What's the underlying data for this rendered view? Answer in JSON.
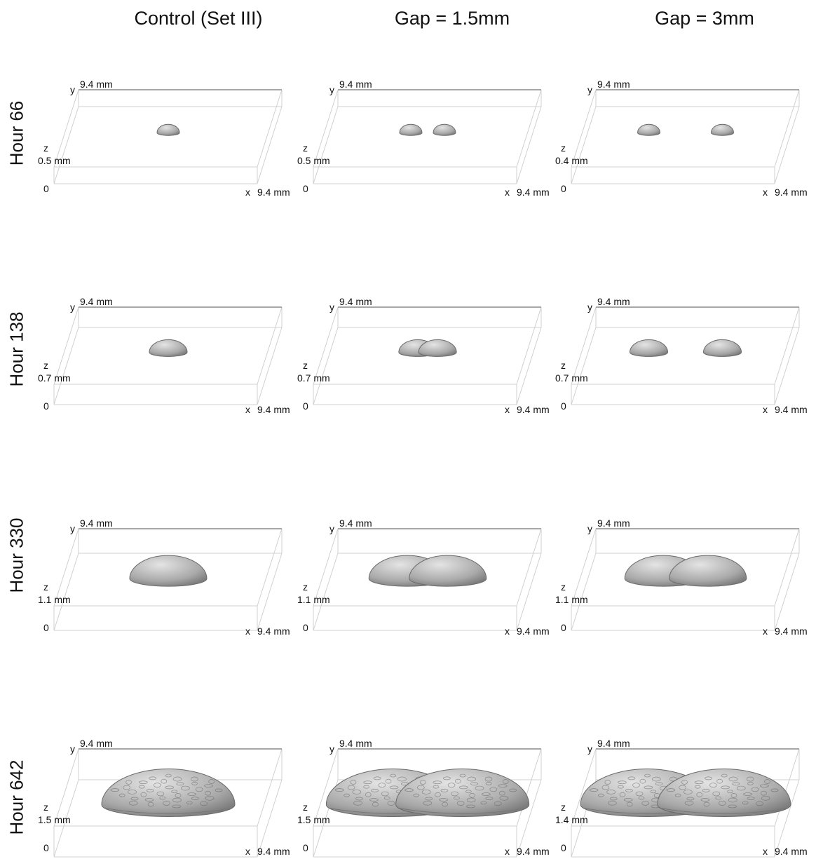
{
  "columns": [
    "Control (Set III)",
    "Gap = 1.5mm",
    "Gap = 3mm"
  ],
  "rows": [
    {
      "label": "Hour 66",
      "panels": [
        {
          "y_label": "y",
          "y_extent": "9.4 mm",
          "z_label": "z",
          "z_extent": "0.5 mm",
          "origin": "0",
          "x_label": "x",
          "x_extent": "9.4 mm",
          "colonies": 1,
          "merged": false
        },
        {
          "y_label": "y",
          "y_extent": "9.4 mm",
          "z_label": "z",
          "z_extent": "0.5 mm",
          "origin": "0",
          "x_label": "x",
          "x_extent": "9.4 mm",
          "colonies": 2,
          "merged": false
        },
        {
          "y_label": "y",
          "y_extent": "9.4 mm",
          "z_label": "z",
          "z_extent": "0.4 mm",
          "origin": "0",
          "x_label": "x",
          "x_extent": "9.4 mm",
          "colonies": 2,
          "merged": false
        }
      ]
    },
    {
      "label": "Hour 138",
      "panels": [
        {
          "y_label": "y",
          "y_extent": "9.4 mm",
          "z_label": "z",
          "z_extent": "0.7 mm",
          "origin": "0",
          "x_label": "x",
          "x_extent": "9.4 mm",
          "colonies": 1,
          "merged": false
        },
        {
          "y_label": "y",
          "y_extent": "9.4 mm",
          "z_label": "z",
          "z_extent": "0.7 mm",
          "origin": "0",
          "x_label": "x",
          "x_extent": "9.4 mm",
          "colonies": 2,
          "merged": true
        },
        {
          "y_label": "y",
          "y_extent": "9.4 mm",
          "z_label": "z",
          "z_extent": "0.7 mm",
          "origin": "0",
          "x_label": "x",
          "x_extent": "9.4 mm",
          "colonies": 2,
          "merged": false
        }
      ]
    },
    {
      "label": "Hour 330",
      "panels": [
        {
          "y_label": "y",
          "y_extent": "9.4 mm",
          "z_label": "z",
          "z_extent": "1.1 mm",
          "origin": "0",
          "x_label": "x",
          "x_extent": "9.4 mm",
          "colonies": 1,
          "merged": false
        },
        {
          "y_label": "y",
          "y_extent": "9.4 mm",
          "z_label": "z",
          "z_extent": "1.1 mm",
          "origin": "0",
          "x_label": "x",
          "x_extent": "9.4 mm",
          "colonies": 2,
          "merged": true
        },
        {
          "y_label": "y",
          "y_extent": "9.4 mm",
          "z_label": "z",
          "z_extent": "1.1 mm",
          "origin": "0",
          "x_label": "x",
          "x_extent": "9.4 mm",
          "colonies": 2,
          "merged": true
        }
      ]
    },
    {
      "label": "Hour 642",
      "panels": [
        {
          "y_label": "y",
          "y_extent": "9.4 mm",
          "z_label": "z",
          "z_extent": "1.5 mm",
          "origin": "0",
          "x_label": "x",
          "x_extent": "9.4 mm",
          "colonies": 1,
          "merged": false
        },
        {
          "y_label": "y",
          "y_extent": "9.4 mm",
          "z_label": "z",
          "z_extent": "1.5 mm",
          "origin": "0",
          "x_label": "x",
          "x_extent": "9.4 mm",
          "colonies": 2,
          "merged": true
        },
        {
          "y_label": "y",
          "y_extent": "9.4 mm",
          "z_label": "z",
          "z_extent": "1.4 mm",
          "origin": "0",
          "x_label": "x",
          "x_extent": "9.4 mm",
          "colonies": 2,
          "merged": true
        }
      ]
    }
  ]
}
